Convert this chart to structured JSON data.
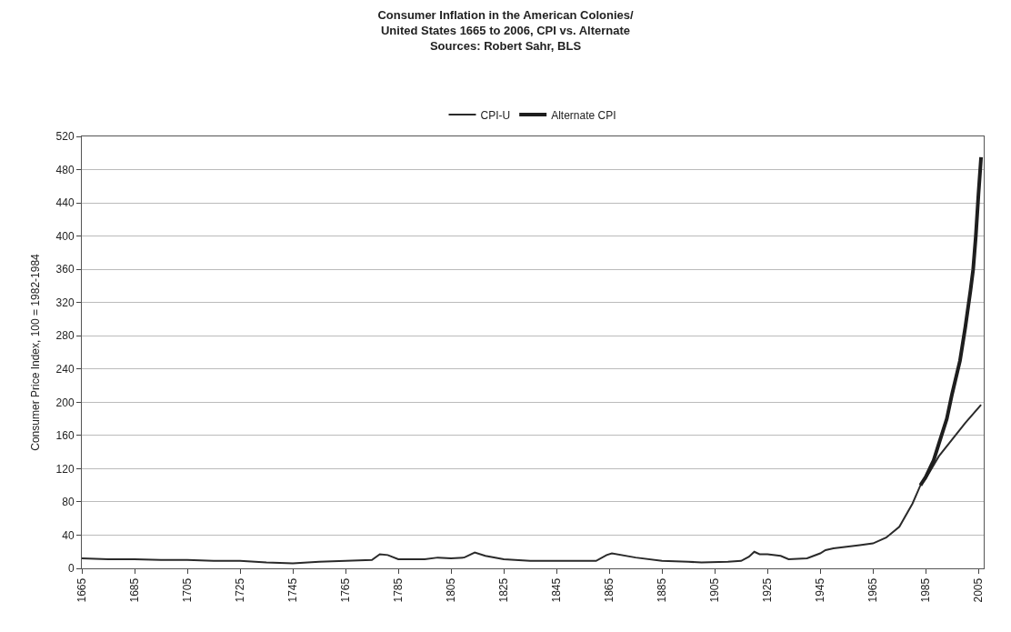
{
  "chart_data": {
    "type": "line",
    "title": "Consumer Inflation in the American Colonies/\nUnited States 1665 to 2006, CPI vs. Alternate\nSources: Robert Sahr, BLS",
    "ylabel": "Consumer Price Index, 100 = 1982-1984",
    "xlim": [
      1665,
      2007
    ],
    "xticks": [
      1665,
      1685,
      1705,
      1725,
      1745,
      1765,
      1785,
      1805,
      1825,
      1845,
      1865,
      1885,
      1905,
      1925,
      1945,
      1965,
      1985,
      2005
    ],
    "ylim": [
      0,
      520
    ],
    "yticks": [
      0,
      40,
      80,
      120,
      160,
      200,
      240,
      280,
      320,
      360,
      400,
      440,
      480,
      520
    ],
    "grid": "y",
    "legend": "top",
    "marker": "none",
    "line_style": "solid",
    "series": [
      {
        "name": "CPI-U",
        "color": "#2a2a2a",
        "x": [
          1665,
          1675,
          1685,
          1695,
          1705,
          1715,
          1725,
          1735,
          1745,
          1755,
          1765,
          1775,
          1778,
          1781,
          1785,
          1795,
          1800,
          1805,
          1810,
          1814,
          1818,
          1825,
          1835,
          1845,
          1855,
          1860,
          1864,
          1866,
          1875,
          1885,
          1895,
          1900,
          1910,
          1915,
          1918,
          1920,
          1922,
          1925,
          1930,
          1933,
          1940,
          1945,
          1947,
          1950,
          1955,
          1960,
          1965,
          1970,
          1975,
          1980,
          1983,
          1985,
          1990,
          1995,
          2000,
          2006
        ],
        "values": [
          12,
          11,
          11,
          10,
          10,
          9,
          9,
          7,
          6,
          8,
          9,
          10,
          17,
          16,
          11,
          11,
          13,
          12,
          13,
          19,
          15,
          11,
          9,
          9,
          9,
          9,
          16,
          18,
          13,
          9,
          8,
          7,
          8,
          9,
          14,
          20,
          17,
          17,
          15,
          11,
          12,
          18,
          22,
          24,
          26,
          28,
          30,
          37,
          50,
          78,
          100,
          108,
          135,
          155,
          175,
          197
        ]
      },
      {
        "name": "Alternate CPI",
        "color": "#1e1e1e",
        "x": [
          1983,
          1985,
          1988,
          1990,
          1993,
          1995,
          1998,
          2000,
          2002,
          2003,
          2004,
          2005,
          2006
        ],
        "values": [
          100,
          110,
          130,
          150,
          180,
          210,
          250,
          290,
          335,
          360,
          400,
          450,
          495
        ]
      }
    ]
  }
}
